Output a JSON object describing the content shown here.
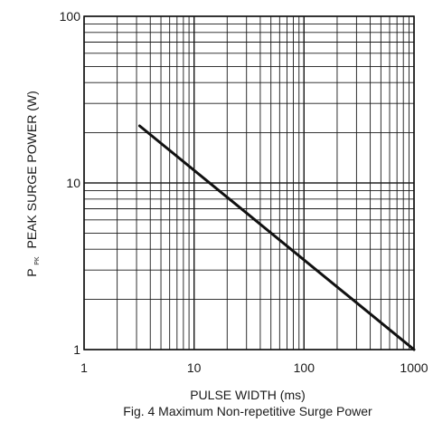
{
  "chart_data": {
    "type": "line",
    "x_scale": "log",
    "y_scale": "log",
    "xlim": [
      1,
      1000
    ],
    "ylim": [
      1,
      100
    ],
    "x_ticks": [
      1,
      10,
      100,
      1000
    ],
    "x_tick_labels": [
      "1",
      "10",
      "100",
      "1000"
    ],
    "y_ticks": [
      1,
      10,
      100
    ],
    "y_tick_labels": [
      "1",
      "10",
      "100"
    ],
    "xlabel": "PULSE WIDTH (ms)",
    "ylabel_main": "P",
    "ylabel_subscript": "PK",
    "ylabel_rest": "PEAK SURGE POWER (W)",
    "caption": "Fig. 4  Maximum Non-repetitive Surge Power",
    "grid": true,
    "line_color": "#111111",
    "grid_color": "#1a1a1a",
    "series": [
      {
        "x": [
          3.2,
          1000
        ],
        "y": [
          22,
          1.0
        ]
      }
    ]
  }
}
